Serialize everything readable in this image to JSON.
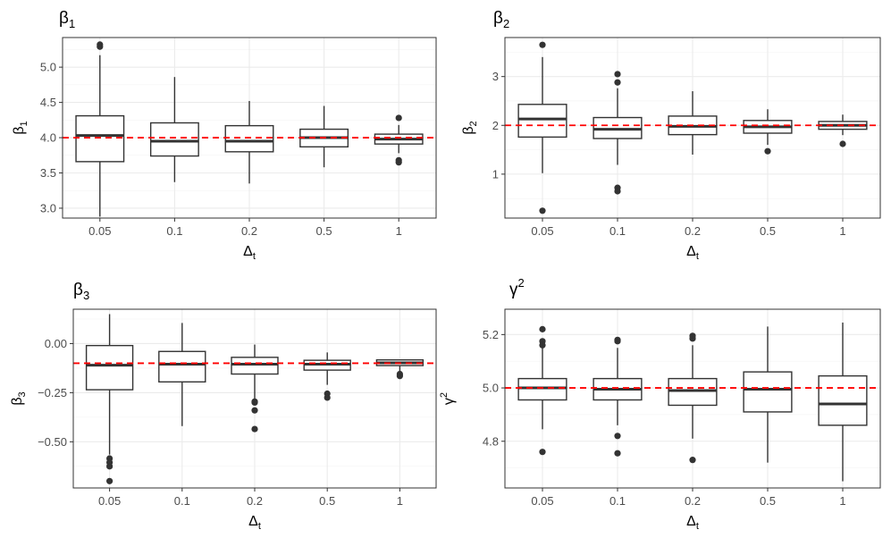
{
  "chart_data": [
    {
      "type": "boxplot",
      "title": "β",
      "title_sub": "1",
      "xlabel": "Δ",
      "xlabel_sub": "t",
      "ylabel": "β",
      "ylabel_sub": "1",
      "categories": [
        "0.05",
        "0.1",
        "0.2",
        "0.5",
        "1"
      ],
      "ylim": [
        2.86,
        5.42
      ],
      "yticks": [
        3.0,
        3.5,
        4.0,
        4.5,
        5.0
      ],
      "ytick_labels": [
        "3.0",
        "3.5",
        "4.0",
        "4.5",
        "5.0"
      ],
      "reference_line": 4.0,
      "boxes": [
        {
          "q1": 3.66,
          "median": 4.03,
          "q3": 4.31,
          "lower": 2.88,
          "upper": 5.17,
          "outliers": [
            5.29,
            5.32
          ]
        },
        {
          "q1": 3.74,
          "median": 3.95,
          "q3": 4.21,
          "lower": 3.37,
          "upper": 4.86,
          "outliers": []
        },
        {
          "q1": 3.8,
          "median": 3.95,
          "q3": 4.17,
          "lower": 3.35,
          "upper": 4.52,
          "outliers": []
        },
        {
          "q1": 3.87,
          "median": 4.0,
          "q3": 4.12,
          "lower": 3.58,
          "upper": 4.45,
          "outliers": []
        },
        {
          "q1": 3.91,
          "median": 3.98,
          "q3": 4.05,
          "lower": 3.78,
          "upper": 4.18,
          "outliers": [
            4.28,
            3.65,
            3.68
          ]
        }
      ]
    },
    {
      "type": "boxplot",
      "title": "β",
      "title_sub": "2",
      "xlabel": "Δ",
      "xlabel_sub": "t",
      "ylabel": "β",
      "ylabel_sub": "2",
      "categories": [
        "0.05",
        "0.1",
        "0.2",
        "0.5",
        "1"
      ],
      "ylim": [
        0.1,
        3.8
      ],
      "yticks": [
        1,
        2,
        3
      ],
      "ytick_labels": [
        "1",
        "2",
        "3"
      ],
      "reference_line": 2.0,
      "boxes": [
        {
          "q1": 1.76,
          "median": 2.13,
          "q3": 2.43,
          "lower": 1.02,
          "upper": 3.4,
          "outliers": [
            3.65,
            0.25
          ]
        },
        {
          "q1": 1.73,
          "median": 1.92,
          "q3": 2.16,
          "lower": 1.19,
          "upper": 2.76,
          "outliers": [
            3.05,
            2.88,
            0.72,
            0.65
          ]
        },
        {
          "q1": 1.81,
          "median": 1.98,
          "q3": 2.19,
          "lower": 1.4,
          "upper": 2.7,
          "outliers": []
        },
        {
          "q1": 1.84,
          "median": 1.97,
          "q3": 2.1,
          "lower": 1.6,
          "upper": 2.33,
          "outliers": [
            1.47
          ]
        },
        {
          "q1": 1.92,
          "median": 2.0,
          "q3": 2.08,
          "lower": 1.8,
          "upper": 2.22,
          "outliers": [
            1.62
          ]
        }
      ]
    },
    {
      "type": "boxplot",
      "title": "β",
      "title_sub": "3",
      "xlabel": "Δ",
      "xlabel_sub": "t",
      "ylabel": "β",
      "ylabel_sub": "3",
      "categories": [
        "0.05",
        "0.1",
        "0.2",
        "0.5",
        "1"
      ],
      "ylim": [
        -0.735,
        0.175
      ],
      "yticks": [
        -0.5,
        -0.25,
        0.0
      ],
      "ytick_labels": [
        "−0.50",
        "−0.25",
        "0.00"
      ],
      "reference_line": -0.1,
      "boxes": [
        {
          "q1": -0.235,
          "median": -0.11,
          "q3": -0.01,
          "lower": -0.565,
          "upper": 0.15,
          "outliers": [
            -0.585,
            -0.605,
            -0.625,
            -0.7
          ]
        },
        {
          "q1": -0.195,
          "median": -0.105,
          "q3": -0.04,
          "lower": -0.42,
          "upper": 0.105,
          "outliers": []
        },
        {
          "q1": -0.155,
          "median": -0.105,
          "q3": -0.07,
          "lower": -0.28,
          "upper": -0.005,
          "outliers": [
            -0.295,
            -0.3,
            -0.34,
            -0.435
          ]
        },
        {
          "q1": -0.135,
          "median": -0.105,
          "q3": -0.085,
          "lower": -0.21,
          "upper": -0.045,
          "outliers": [
            -0.255,
            -0.275
          ]
        },
        {
          "q1": -0.112,
          "median": -0.098,
          "q3": -0.083,
          "lower": -0.14,
          "upper": -0.08,
          "outliers": [
            -0.155,
            -0.165
          ]
        }
      ]
    },
    {
      "type": "boxplot",
      "title": "γ",
      "title_sup": "2",
      "xlabel": "Δ",
      "xlabel_sub": "t",
      "ylabel": "γ",
      "ylabel_sup": "2",
      "categories": [
        "0.05",
        "0.1",
        "0.2",
        "0.5",
        "1"
      ],
      "ylim": [
        4.625,
        5.295
      ],
      "yticks": [
        4.8,
        5.0,
        5.2
      ],
      "ytick_labels": [
        "4.8",
        "5.0",
        "5.2"
      ],
      "reference_line": 5.0,
      "boxes": [
        {
          "q1": 4.955,
          "median": 5.0,
          "q3": 5.035,
          "lower": 4.845,
          "upper": 5.15,
          "outliers": [
            5.22,
            5.175,
            5.16,
            4.76
          ]
        },
        {
          "q1": 4.955,
          "median": 4.995,
          "q3": 5.035,
          "lower": 4.86,
          "upper": 5.15,
          "outliers": [
            5.18,
            5.175,
            4.82,
            4.755
          ]
        },
        {
          "q1": 4.935,
          "median": 4.99,
          "q3": 5.035,
          "lower": 4.81,
          "upper": 5.16,
          "outliers": [
            5.195,
            5.185,
            4.73
          ]
        },
        {
          "q1": 4.91,
          "median": 4.995,
          "q3": 5.06,
          "lower": 4.72,
          "upper": 5.23,
          "outliers": []
        },
        {
          "q1": 4.86,
          "median": 4.94,
          "q3": 5.045,
          "lower": 4.65,
          "upper": 5.245,
          "outliers": []
        }
      ]
    }
  ],
  "colors": {
    "box_stroke": "#333333",
    "reference_line": "#ff0000",
    "grid": "#ebebeb"
  }
}
